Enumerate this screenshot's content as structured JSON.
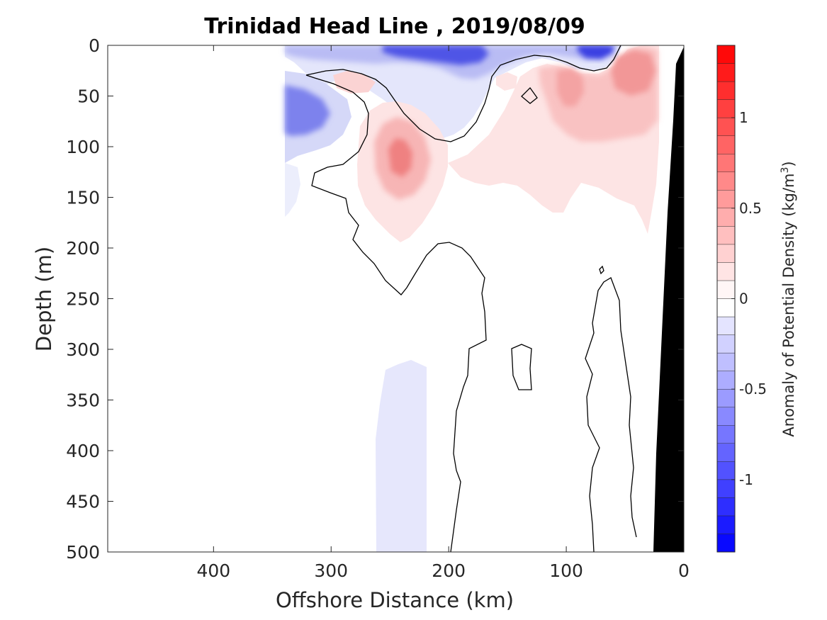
{
  "chart_data": {
    "type": "heatmap",
    "title": "Trinidad Head Line , 2019/08/09",
    "xlabel": "Offshore Distance (km)",
    "ylabel": "Depth (m)",
    "xlim": [
      490,
      0
    ],
    "ylim": [
      0,
      500
    ],
    "x_reversed": true,
    "y_reversed": true,
    "x_ticks": [
      "400",
      "300",
      "200",
      "100",
      "0"
    ],
    "x_tick_values": [
      400,
      300,
      200,
      100,
      0
    ],
    "y_ticks": [
      "0",
      "50",
      "100",
      "150",
      "200",
      "250",
      "300",
      "350",
      "400",
      "450",
      "500"
    ],
    "y_tick_values": [
      0,
      50,
      100,
      150,
      200,
      250,
      300,
      350,
      400,
      450,
      500
    ],
    "colorbar": {
      "label": "Anomaly of Potential Density (kg/m",
      "label_superscript": "3",
      "label_close": ")",
      "range": [
        -1.4,
        1.4
      ],
      "levels": 28,
      "ticks": [
        "1",
        "0.5",
        "0",
        "-0.5",
        "-1"
      ],
      "tick_values": [
        1,
        0.5,
        0,
        -0.5,
        -1
      ],
      "colormap": "blue-white-red",
      "negative_color": "#0000ff",
      "positive_color": "#ff0000",
      "zero_color": "#ffffff"
    },
    "anomaly_features": [
      {
        "kind": "negative",
        "x_range": [
          340,
          0
        ],
        "depth_range": [
          0,
          30
        ],
        "peak": -0.9
      },
      {
        "kind": "negative",
        "x_range": [
          340,
          300
        ],
        "depth_range": [
          30,
          150
        ],
        "peak": -0.6
      },
      {
        "kind": "negative",
        "x_range": [
          260,
          220
        ],
        "depth_range": [
          310,
          500
        ],
        "peak": -0.1
      },
      {
        "kind": "positive",
        "x_range": [
          300,
          160
        ],
        "depth_range": [
          60,
          190
        ],
        "peak": 0.4
      },
      {
        "kind": "positive",
        "x_range": [
          160,
          20
        ],
        "depth_range": [
          20,
          180
        ],
        "peak": 0.3
      },
      {
        "kind": "positive",
        "x_range": [
          60,
          20
        ],
        "depth_range": [
          0,
          60
        ],
        "peak": 0.5
      }
    ],
    "data_extent_km": [
      340,
      0
    ],
    "bathymetry": {
      "color": "#000000",
      "depth_at_x": [
        [
          25,
          500
        ],
        [
          10,
          90
        ],
        [
          0,
          5
        ]
      ]
    },
    "grid": false
  }
}
